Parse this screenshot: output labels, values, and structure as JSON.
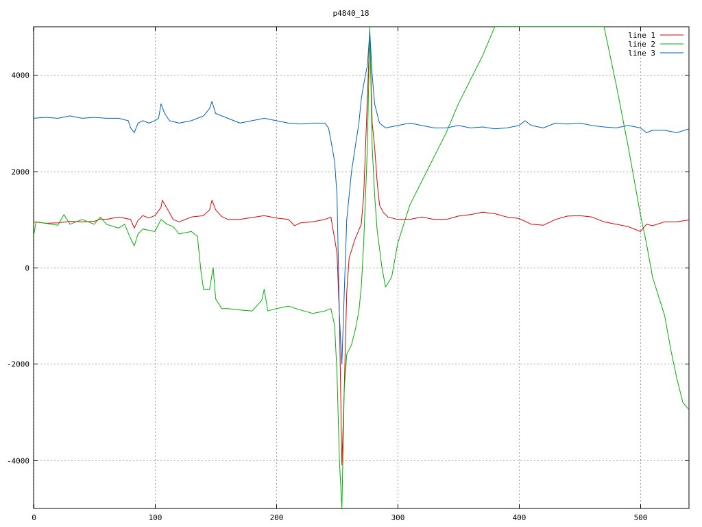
{
  "chart_data": {
    "type": "line",
    "title": "p4840_18",
    "xlim": [
      0,
      540
    ],
    "ylim": [
      -5000,
      5000
    ],
    "xticks": [
      0,
      100,
      200,
      300,
      400,
      500
    ],
    "yticks": [
      -4000,
      -2000,
      0,
      2000,
      4000
    ],
    "xtick_labels": [
      "0",
      "100",
      "200",
      "300",
      "400",
      "500"
    ],
    "ytick_labels": [
      "-4000",
      "-2000",
      "0",
      "2000",
      "4000"
    ],
    "grid": true,
    "legend_position": "top-right",
    "series": [
      {
        "name": "line 1",
        "color": "#e00000",
        "points": [
          [
            0,
            950
          ],
          [
            10,
            920
          ],
          [
            20,
            930
          ],
          [
            30,
            960
          ],
          [
            40,
            950
          ],
          [
            50,
            960
          ],
          [
            55,
            1010
          ],
          [
            60,
            1000
          ],
          [
            70,
            1050
          ],
          [
            80,
            1000
          ],
          [
            83,
            820
          ],
          [
            86,
            980
          ],
          [
            90,
            1080
          ],
          [
            95,
            1030
          ],
          [
            100,
            1080
          ],
          [
            105,
            1250
          ],
          [
            106,
            1400
          ],
          [
            110,
            1230
          ],
          [
            115,
            1000
          ],
          [
            120,
            950
          ],
          [
            125,
            1000
          ],
          [
            130,
            1050
          ],
          [
            140,
            1080
          ],
          [
            145,
            1200
          ],
          [
            147,
            1400
          ],
          [
            150,
            1200
          ],
          [
            155,
            1060
          ],
          [
            160,
            1000
          ],
          [
            170,
            1000
          ],
          [
            180,
            1040
          ],
          [
            190,
            1080
          ],
          [
            200,
            1030
          ],
          [
            210,
            1000
          ],
          [
            215,
            870
          ],
          [
            220,
            930
          ],
          [
            230,
            950
          ],
          [
            240,
            1000
          ],
          [
            245,
            1050
          ],
          [
            248,
            600
          ],
          [
            250,
            300
          ],
          [
            252,
            -1000
          ],
          [
            254,
            -4100
          ],
          [
            256,
            -2500
          ],
          [
            258,
            -500
          ],
          [
            260,
            200
          ],
          [
            265,
            600
          ],
          [
            270,
            900
          ],
          [
            272,
            1500
          ],
          [
            275,
            3500
          ],
          [
            277,
            4900
          ],
          [
            279,
            3000
          ],
          [
            281,
            2500
          ],
          [
            283,
            1800
          ],
          [
            285,
            1300
          ],
          [
            288,
            1150
          ],
          [
            292,
            1050
          ],
          [
            300,
            1000
          ],
          [
            310,
            1000
          ],
          [
            320,
            1050
          ],
          [
            330,
            1000
          ],
          [
            340,
            1000
          ],
          [
            350,
            1070
          ],
          [
            360,
            1100
          ],
          [
            370,
            1150
          ],
          [
            380,
            1120
          ],
          [
            390,
            1050
          ],
          [
            400,
            1020
          ],
          [
            410,
            900
          ],
          [
            420,
            880
          ],
          [
            430,
            1000
          ],
          [
            440,
            1070
          ],
          [
            450,
            1080
          ],
          [
            460,
            1050
          ],
          [
            470,
            950
          ],
          [
            480,
            900
          ],
          [
            490,
            850
          ],
          [
            500,
            750
          ],
          [
            505,
            900
          ],
          [
            510,
            870
          ],
          [
            520,
            950
          ],
          [
            530,
            950
          ],
          [
            540,
            990
          ]
        ]
      },
      {
        "name": "line 2",
        "color": "#00b000",
        "points": [
          [
            0,
            650
          ],
          [
            2,
            950
          ],
          [
            10,
            920
          ],
          [
            20,
            880
          ],
          [
            25,
            1100
          ],
          [
            30,
            900
          ],
          [
            40,
            1000
          ],
          [
            50,
            900
          ],
          [
            55,
            1050
          ],
          [
            60,
            900
          ],
          [
            70,
            820
          ],
          [
            75,
            900
          ],
          [
            80,
            600
          ],
          [
            83,
            450
          ],
          [
            86,
            700
          ],
          [
            90,
            800
          ],
          [
            100,
            750
          ],
          [
            105,
            1000
          ],
          [
            110,
            900
          ],
          [
            115,
            850
          ],
          [
            120,
            700
          ],
          [
            130,
            750
          ],
          [
            135,
            650
          ],
          [
            138,
            -100
          ],
          [
            140,
            -450
          ],
          [
            145,
            -450
          ],
          [
            148,
            0
          ],
          [
            150,
            -650
          ],
          [
            155,
            -850
          ],
          [
            160,
            -850
          ],
          [
            170,
            -880
          ],
          [
            180,
            -900
          ],
          [
            188,
            -680
          ],
          [
            190,
            -450
          ],
          [
            193,
            -900
          ],
          [
            200,
            -850
          ],
          [
            210,
            -800
          ],
          [
            220,
            -880
          ],
          [
            230,
            -950
          ],
          [
            240,
            -900
          ],
          [
            245,
            -850
          ],
          [
            248,
            -1200
          ],
          [
            250,
            -2200
          ],
          [
            252,
            -4000
          ],
          [
            254,
            -5000
          ],
          [
            256,
            -2500
          ],
          [
            258,
            -1800
          ],
          [
            262,
            -1600
          ],
          [
            265,
            -1300
          ],
          [
            268,
            -900
          ],
          [
            270,
            -400
          ],
          [
            272,
            500
          ],
          [
            275,
            2500
          ],
          [
            277,
            5000
          ],
          [
            279,
            2500
          ],
          [
            281,
            1500
          ],
          [
            283,
            800
          ],
          [
            287,
            0
          ],
          [
            290,
            -400
          ],
          [
            295,
            -200
          ],
          [
            300,
            500
          ],
          [
            310,
            1300
          ],
          [
            320,
            1800
          ],
          [
            330,
            2300
          ],
          [
            340,
            2800
          ],
          [
            350,
            3400
          ],
          [
            360,
            3900
          ],
          [
            370,
            4400
          ],
          [
            380,
            5000
          ],
          [
            470,
            5000
          ],
          [
            480,
            3800
          ],
          [
            490,
            2500
          ],
          [
            500,
            1100
          ],
          [
            505,
            500
          ],
          [
            510,
            -200
          ],
          [
            520,
            -1000
          ],
          [
            525,
            -1700
          ],
          [
            530,
            -2300
          ],
          [
            535,
            -2800
          ],
          [
            540,
            -2950
          ]
        ]
      },
      {
        "name": "line 3",
        "color": "#0060c0",
        "points": [
          [
            0,
            3100
          ],
          [
            10,
            3120
          ],
          [
            20,
            3100
          ],
          [
            30,
            3150
          ],
          [
            40,
            3100
          ],
          [
            50,
            3120
          ],
          [
            60,
            3100
          ],
          [
            70,
            3100
          ],
          [
            78,
            3050
          ],
          [
            80,
            2900
          ],
          [
            83,
            2800
          ],
          [
            86,
            3000
          ],
          [
            90,
            3050
          ],
          [
            95,
            3000
          ],
          [
            100,
            3050
          ],
          [
            103,
            3100
          ],
          [
            105,
            3400
          ],
          [
            108,
            3200
          ],
          [
            112,
            3050
          ],
          [
            120,
            3000
          ],
          [
            130,
            3050
          ],
          [
            140,
            3150
          ],
          [
            145,
            3300
          ],
          [
            147,
            3450
          ],
          [
            150,
            3200
          ],
          [
            160,
            3100
          ],
          [
            170,
            3000
          ],
          [
            180,
            3050
          ],
          [
            190,
            3100
          ],
          [
            200,
            3050
          ],
          [
            210,
            3000
          ],
          [
            220,
            2980
          ],
          [
            230,
            3000
          ],
          [
            240,
            3000
          ],
          [
            243,
            2900
          ],
          [
            246,
            2500
          ],
          [
            248,
            2200
          ],
          [
            250,
            1500
          ],
          [
            252,
            -1000
          ],
          [
            254,
            -2000
          ],
          [
            256,
            -500
          ],
          [
            258,
            1000
          ],
          [
            262,
            2000
          ],
          [
            265,
            2500
          ],
          [
            268,
            3000
          ],
          [
            270,
            3500
          ],
          [
            272,
            3800
          ],
          [
            275,
            4200
          ],
          [
            277,
            4900
          ],
          [
            279,
            4000
          ],
          [
            281,
            3400
          ],
          [
            283,
            3200
          ],
          [
            285,
            3000
          ],
          [
            290,
            2900
          ],
          [
            300,
            2950
          ],
          [
            310,
            3000
          ],
          [
            320,
            2950
          ],
          [
            330,
            2900
          ],
          [
            340,
            2900
          ],
          [
            350,
            2950
          ],
          [
            360,
            2900
          ],
          [
            370,
            2920
          ],
          [
            380,
            2880
          ],
          [
            390,
            2900
          ],
          [
            400,
            2950
          ],
          [
            405,
            3050
          ],
          [
            410,
            2950
          ],
          [
            420,
            2900
          ],
          [
            430,
            3000
          ],
          [
            440,
            2980
          ],
          [
            450,
            3000
          ],
          [
            460,
            2950
          ],
          [
            470,
            2920
          ],
          [
            480,
            2900
          ],
          [
            490,
            2950
          ],
          [
            500,
            2900
          ],
          [
            505,
            2800
          ],
          [
            510,
            2850
          ],
          [
            520,
            2850
          ],
          [
            530,
            2800
          ],
          [
            540,
            2880
          ]
        ]
      }
    ]
  }
}
